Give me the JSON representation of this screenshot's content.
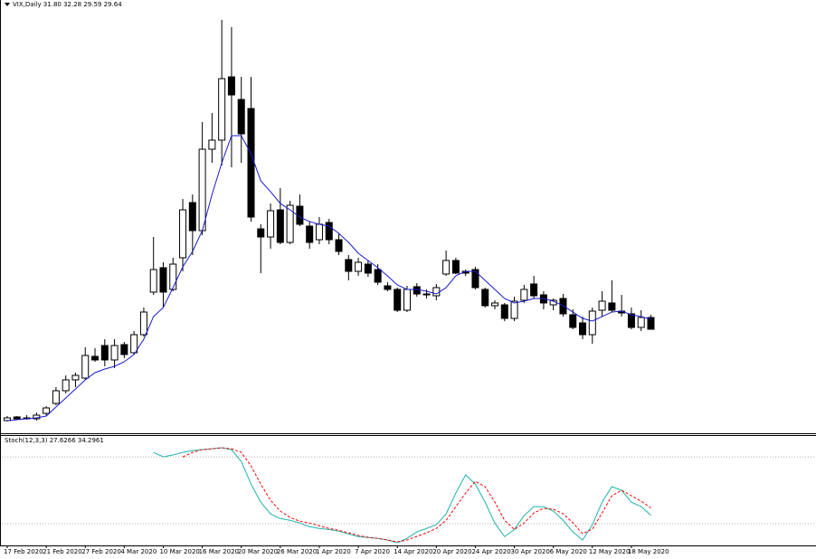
{
  "chart_data": [
    {
      "type": "candlestick",
      "title": "VIX,Daily  31.80 32.28 29.59 29.64",
      "categories": [
        "17 Feb 2020",
        null,
        null,
        null,
        "21 Feb 2020",
        null,
        null,
        null,
        "27 Feb 2020",
        null,
        null,
        null,
        "4 Mar 2020",
        null,
        null,
        null,
        "10 Mar 2020",
        null,
        null,
        null,
        "16 Mar 2020",
        null,
        null,
        null,
        "20 Mar 2020",
        null,
        null,
        null,
        "26 Mar 2020",
        null,
        null,
        null,
        "1 Apr 2020",
        null,
        null,
        null,
        "7 Apr 2020",
        null,
        null,
        null,
        "14 Apr 2020",
        null,
        null,
        null,
        "20 Apr 2020",
        null,
        null,
        null,
        "24 Apr 2020",
        null,
        null,
        null,
        "30 Apr 2020",
        null,
        null,
        null,
        "6 May 2020",
        null,
        null,
        null,
        "12 May 2020",
        null,
        null,
        null,
        "18 May 2020",
        null,
        null
      ],
      "open": [
        12.81,
        13.48,
        13.31,
        13.14,
        14.14,
        15.98,
        18.31,
        20.31,
        20.64,
        24.64,
        26.64,
        23.98,
        26.81,
        25.31,
        28.64,
        36.48,
        40.98,
        36.98,
        42.81,
        52.98,
        47.81,
        62.81,
        64.48,
        76.14,
        71.98,
        70.31,
        48.14,
        46.64,
        51.64,
        45.64,
        52.31,
        48.64,
        46.14,
        49.31,
        46.14,
        42.48,
        40.31,
        41.64,
        40.64,
        37.64,
        36.98,
        33.14,
        37.48,
        36.14,
        35.81,
        39.81,
        42.31,
        40.31,
        40.64,
        36.98,
        33.98,
        34.14,
        31.64,
        34.98,
        37.98,
        35.98,
        34.14,
        35.31,
        32.31,
        30.81,
        28.64,
        33.14,
        34.48,
        32.98,
        32.48,
        29.98,
        31.8
      ],
      "high": [
        13.64,
        13.64,
        13.81,
        14.31,
        15.48,
        18.98,
        21.14,
        21.64,
        26.31,
        26.14,
        27.81,
        27.81,
        27.31,
        29.31,
        33.64,
        46.64,
        41.98,
        42.81,
        53.64,
        54.48,
        67.81,
        69.48,
        86.64,
        85.31,
        76.14,
        76.14,
        48.98,
        52.81,
        55.64,
        53.31,
        54.48,
        49.48,
        50.31,
        49.98,
        47.31,
        43.31,
        42.81,
        42.31,
        41.64,
        38.31,
        37.31,
        37.64,
        38.14,
        36.98,
        37.98,
        44.14,
        42.81,
        40.64,
        41.14,
        37.31,
        34.98,
        34.48,
        35.64,
        37.81,
        39.48,
        36.64,
        35.31,
        36.14,
        33.31,
        31.98,
        33.64,
        36.64,
        38.64,
        35.98,
        33.64,
        33.14,
        32.28
      ],
      "low": [
        12.64,
        12.98,
        12.98,
        12.81,
        13.64,
        15.64,
        17.81,
        18.98,
        20.31,
        23.64,
        22.81,
        22.48,
        24.31,
        24.98,
        28.31,
        35.98,
        33.64,
        36.64,
        40.31,
        43.31,
        46.98,
        60.31,
        59.81,
        59.48,
        60.31,
        49.48,
        39.98,
        44.48,
        45.31,
        45.31,
        48.64,
        44.48,
        45.31,
        45.31,
        43.31,
        38.64,
        39.48,
        39.31,
        37.81,
        36.64,
        32.81,
        32.81,
        35.64,
        35.31,
        34.98,
        39.48,
        39.81,
        39.48,
        36.98,
        33.64,
        33.31,
        31.14,
        31.14,
        34.48,
        35.31,
        33.31,
        33.14,
        31.98,
        29.64,
        27.81,
        26.98,
        31.98,
        32.81,
        31.98,
        29.64,
        29.31,
        29.59
      ],
      "close": [
        13.31,
        13.14,
        13.14,
        13.81,
        15.14,
        18.31,
        20.31,
        21.14,
        24.81,
        23.98,
        23.98,
        26.64,
        24.98,
        28.64,
        32.81,
        40.64,
        36.48,
        41.64,
        51.64,
        47.81,
        62.81,
        64.48,
        75.81,
        72.81,
        65.64,
        50.31,
        46.64,
        51.48,
        45.64,
        52.48,
        48.98,
        45.64,
        48.98,
        46.14,
        43.98,
        40.31,
        41.98,
        39.98,
        38.31,
        36.98,
        33.14,
        36.98,
        36.14,
        35.98,
        37.31,
        42.31,
        39.98,
        39.98,
        37.31,
        33.98,
        34.48,
        31.64,
        34.81,
        36.98,
        35.81,
        34.48,
        34.98,
        32.48,
        29.98,
        28.64,
        32.98,
        34.81,
        33.14,
        32.64,
        29.98,
        31.81,
        29.64
      ],
      "up_color": "#ffffff",
      "down_color": "#000000",
      "overlay": {
        "color": "#1a1acc",
        "values": [
          12.81,
          12.98,
          13.14,
          13.31,
          13.64,
          15.31,
          16.98,
          18.64,
          20.31,
          21.64,
          22.31,
          22.81,
          23.64,
          24.98,
          27.81,
          31.98,
          33.64,
          37.31,
          41.14,
          43.98,
          47.81,
          54.48,
          60.31,
          65.31,
          65.31,
          61.98,
          56.98,
          54.98,
          52.81,
          51.64,
          50.31,
          49.48,
          48.98,
          48.64,
          47.31,
          45.64,
          43.64,
          42.31,
          40.98,
          39.48,
          37.81,
          36.98,
          36.98,
          36.64,
          36.14,
          37.31,
          39.48,
          40.31,
          40.31,
          38.64,
          36.98,
          35.31,
          34.48,
          34.81,
          35.31,
          35.31,
          34.81,
          33.98,
          32.81,
          31.64,
          31.14,
          31.98,
          32.81,
          32.98,
          32.31,
          31.98,
          31.48
        ]
      }
    },
    {
      "type": "line",
      "title": "Stoch(12,3,3) 27.6266 34.2961",
      "ylim": [
        0,
        100
      ],
      "levels": [
        80,
        20
      ],
      "series": [
        {
          "color": "#20b2aa",
          "dash": false,
          "values": [
            null,
            null,
            null,
            null,
            null,
            null,
            null,
            null,
            null,
            null,
            null,
            null,
            null,
            null,
            null,
            84.1,
            80.0,
            81.7,
            84.1,
            85.7,
            86.5,
            87.3,
            88.2,
            86.5,
            75.9,
            55.6,
            39.4,
            28.8,
            24.7,
            23.1,
            20.6,
            17.4,
            15.8,
            14.9,
            13.3,
            10.9,
            8.5,
            7.7,
            6.9,
            5.4,
            3.0,
            6.9,
            12.7,
            15.8,
            19.2,
            28.8,
            47.6,
            63.9,
            55.6,
            39.4,
            20.6,
            8.5,
            14.9,
            27.3,
            35.4,
            35.4,
            31.4,
            23.1,
            12.7,
            5.4,
            19.2,
            39.4,
            53.3,
            50.0,
            39.4,
            35.4,
            27.6266
          ]
        },
        {
          "color": "#ff0000",
          "dash": true,
          "values": [
            null,
            null,
            null,
            null,
            null,
            null,
            null,
            null,
            null,
            null,
            null,
            null,
            null,
            null,
            null,
            null,
            null,
            null,
            80.0,
            84.1,
            86.5,
            87.3,
            88.2,
            87.3,
            84.1,
            71.9,
            55.6,
            41.1,
            31.4,
            25.7,
            22.3,
            20.6,
            18.2,
            15.8,
            14.1,
            11.9,
            9.5,
            7.9,
            6.9,
            5.4,
            3.8,
            5.4,
            8.7,
            11.9,
            15.8,
            23.1,
            35.4,
            47.6,
            58.1,
            53.3,
            39.4,
            23.1,
            14.9,
            20.6,
            29.8,
            33.8,
            33.0,
            29.0,
            20.9,
            11.1,
            15.2,
            29.8,
            45.2,
            50.0,
            45.2,
            40.3,
            34.2961
          ]
        }
      ]
    }
  ]
}
